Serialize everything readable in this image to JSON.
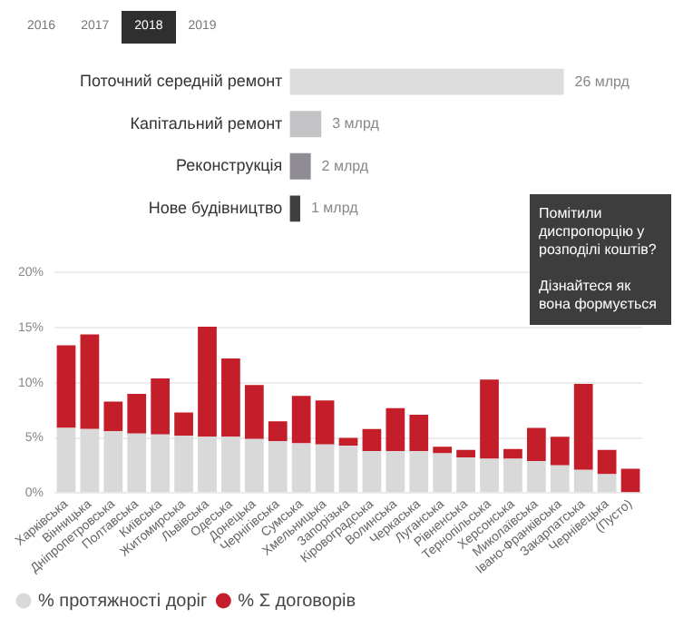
{
  "chart_data": [
    {
      "type": "bar",
      "orientation": "horizontal",
      "categories": [
        "Поточний середній ремонт",
        "Капітальний ремонт",
        "Реконструкція",
        "Нове будівництво"
      ],
      "values": [
        26,
        3,
        2,
        1
      ],
      "colors": [
        "#dcdcdc",
        "#c4c4c6",
        "#8f8c94",
        "#404040"
      ],
      "value_labels": [
        "26 млрд",
        "3 млрд",
        "2 млрд",
        "1 млрд"
      ],
      "tick_labels": "y",
      "annotations": [
        "2016",
        "2017",
        "2018",
        "2019"
      ]
    },
    {
      "type": "bar",
      "stacked": true,
      "categories": [
        "Харківська",
        "Вінницька",
        "Дніпропетровська",
        "Полтавська",
        "Київська",
        "Житомирська",
        "Львівська",
        "Одеська",
        "Донецька",
        "Чернігівська",
        "Сумська",
        "Хмельницька",
        "Запорізька",
        "Кіровоградська",
        "Волинська",
        "Черкаська",
        "Луганська",
        "Рівненська",
        "Тернопільська",
        "Херсонська",
        "Миколаївська",
        "Івано-Франківська",
        "Закарпатська",
        "Чернівецька",
        "(Пусто)"
      ],
      "series": [
        {
          "name": "% протяжності доріг",
          "color": "#d9d9d9",
          "values": [
            5.9,
            5.8,
            5.6,
            5.4,
            5.3,
            5.2,
            5.1,
            5.1,
            4.9,
            4.7,
            4.5,
            4.4,
            4.3,
            3.8,
            3.8,
            3.8,
            3.6,
            3.2,
            3.1,
            3.1,
            2.9,
            2.5,
            2.1,
            1.7,
            0
          ]
        },
        {
          "name": "% Σ договорів",
          "color": "#c41e2a",
          "values": [
            7.5,
            8.6,
            2.7,
            3.6,
            5.1,
            2.1,
            10.0,
            7.1,
            4.9,
            1.8,
            4.3,
            4.0,
            0.7,
            2.0,
            3.9,
            3.3,
            0.6,
            0.7,
            7.2,
            0.9,
            3.0,
            2.6,
            7.8,
            2.2,
            2.2
          ]
        }
      ],
      "ylim": [
        0,
        20
      ],
      "yticks": [
        {
          "value": 0,
          "label": "0%"
        },
        {
          "value": 5,
          "label": "5%"
        },
        {
          "value": 10,
          "label": "10%"
        },
        {
          "value": 15,
          "label": "15%"
        },
        {
          "value": 20,
          "label": "20%"
        }
      ],
      "grid": "y",
      "legend": "bottom left"
    },
    {
      "type": "other",
      "title": "Помітили диспропорцію у розподілі коштів?",
      "annotations": [
        "Дізнайтеся як вона формується"
      ]
    }
  ]
}
